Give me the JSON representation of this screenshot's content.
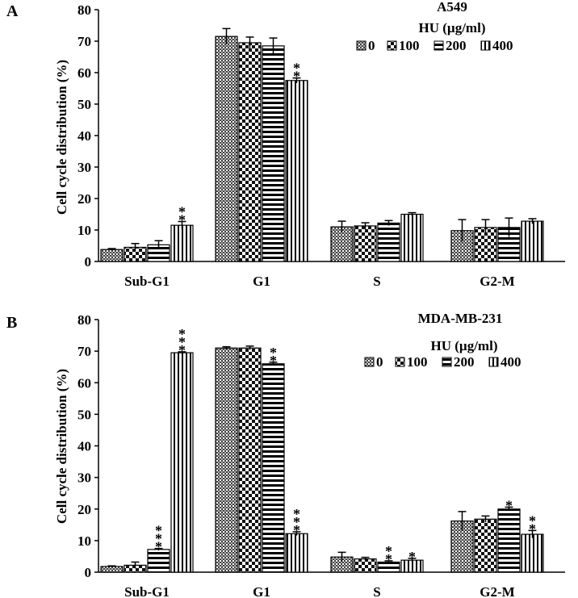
{
  "chart_data": [
    {
      "panel": "A",
      "type": "bar",
      "title": "A549",
      "legend_title": "HU (µg/ml)",
      "ylabel": "Cell cycle distribution (%)",
      "xlabel": "",
      "ylim": [
        0,
        80
      ],
      "yticks": [
        "0",
        "10",
        "20",
        "30",
        "40",
        "50",
        "60",
        "70",
        "80"
      ],
      "categories": [
        "Sub-G1",
        "G1",
        "S",
        "G2-M"
      ],
      "legend_position": "top-right",
      "series": [
        {
          "name": "0",
          "pattern": "crosshatch",
          "values": [
            3.8,
            71.5,
            11.0,
            9.8
          ],
          "errors": [
            0.3,
            2.5,
            1.8,
            3.5
          ]
        },
        {
          "name": "100",
          "pattern": "checker",
          "values": [
            4.5,
            69.5,
            11.3,
            10.8
          ],
          "errors": [
            1.2,
            1.8,
            1.0,
            2.5
          ]
        },
        {
          "name": "200",
          "pattern": "hstripe",
          "values": [
            5.3,
            68.5,
            12.2,
            10.8
          ],
          "errors": [
            1.3,
            2.5,
            0.8,
            3.0
          ]
        },
        {
          "name": "400",
          "pattern": "vstripe",
          "values": [
            11.5,
            57.5,
            15.0,
            12.8
          ],
          "errors": [
            1.2,
            0.8,
            0.5,
            0.8
          ]
        }
      ],
      "annotations": [
        {
          "category": "Sub-G1",
          "series": "400",
          "text": "**"
        },
        {
          "category": "G1",
          "series": "400",
          "text": "**"
        }
      ]
    },
    {
      "panel": "B",
      "type": "bar",
      "title": "MDA-MB-231",
      "legend_title": "HU (µg/ml)",
      "ylabel": "Cell cycle distribution (%)",
      "xlabel": "",
      "ylim": [
        0,
        80
      ],
      "yticks": [
        "0",
        "10",
        "20",
        "30",
        "40",
        "50",
        "60",
        "70",
        "80"
      ],
      "categories": [
        "Sub-G1",
        "G1",
        "S",
        "G2-M"
      ],
      "legend_position": "top-right",
      "series": [
        {
          "name": "0",
          "pattern": "crosshatch",
          "values": [
            1.8,
            71.0,
            4.8,
            16.2
          ],
          "errors": [
            0.2,
            0.4,
            1.5,
            3.0
          ]
        },
        {
          "name": "100",
          "pattern": "checker",
          "values": [
            2.2,
            71.0,
            4.2,
            16.8
          ],
          "errors": [
            1.0,
            0.6,
            0.5,
            1.0
          ]
        },
        {
          "name": "200",
          "pattern": "hstripe",
          "values": [
            7.2,
            66.0,
            3.2,
            20.0
          ],
          "errors": [
            0.3,
            0.5,
            0.4,
            0.6
          ]
        },
        {
          "name": "400",
          "pattern": "vstripe",
          "values": [
            69.5,
            12.2,
            3.8,
            12.0
          ],
          "errors": [
            0.3,
            0.6,
            0.6,
            1.2
          ]
        }
      ],
      "annotations": [
        {
          "category": "Sub-G1",
          "series": "200",
          "text": "***"
        },
        {
          "category": "Sub-G1",
          "series": "400",
          "text": "***"
        },
        {
          "category": "G1",
          "series": "200",
          "text": "**"
        },
        {
          "category": "G1",
          "series": "400",
          "text": "***"
        },
        {
          "category": "S",
          "series": "200",
          "text": "**"
        },
        {
          "category": "S",
          "series": "400",
          "text": "*"
        },
        {
          "category": "G2-M",
          "series": "200",
          "text": "*"
        },
        {
          "category": "G2-M",
          "series": "400",
          "text": "**"
        }
      ]
    }
  ]
}
